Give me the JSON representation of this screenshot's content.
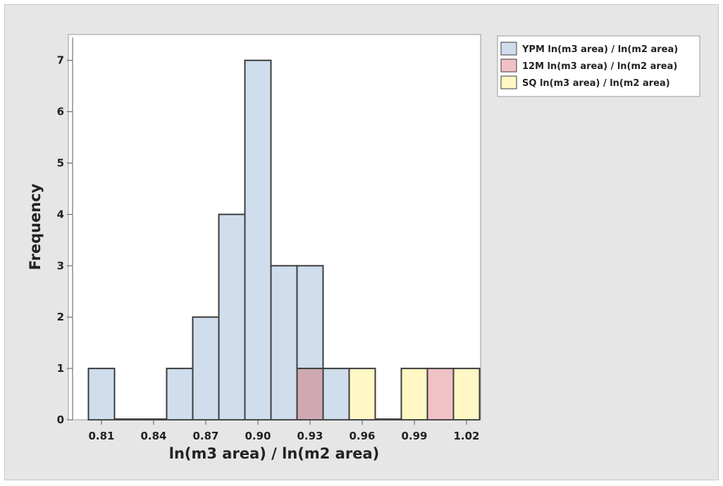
{
  "chart_data": {
    "type": "bar",
    "title": "",
    "xlabel": "ln(m3 area) / ln(m2 area)",
    "ylabel": "Frequency",
    "ylim": [
      0,
      7.5
    ],
    "xlim": [
      0.795,
      1.035
    ],
    "yticks": [
      0,
      1,
      2,
      3,
      4,
      5,
      6,
      7
    ],
    "xticks": [
      "0.81",
      "0.84",
      "0.87",
      "0.90",
      "0.93",
      "0.96",
      "0.99",
      "1.02"
    ],
    "bin_width": 0.015,
    "grid": false,
    "legend_position": "top-right, outside plot",
    "series": [
      {
        "name": "YPM ln(m3 area) / ln(m2 area)",
        "color": "#cfdded",
        "bins": [
          {
            "center": 0.81,
            "count": 1
          },
          {
            "center": 0.825,
            "count": 0
          },
          {
            "center": 0.84,
            "count": 0
          },
          {
            "center": 0.855,
            "count": 1
          },
          {
            "center": 0.87,
            "count": 2
          },
          {
            "center": 0.885,
            "count": 4
          },
          {
            "center": 0.9,
            "count": 7
          },
          {
            "center": 0.915,
            "count": 3
          },
          {
            "center": 0.93,
            "count": 3
          },
          {
            "center": 0.945,
            "count": 1
          },
          {
            "center": 0.975,
            "count": 0
          }
        ]
      },
      {
        "name": "12M ln(m3 area) / ln(m2 area)",
        "color": "#f0c2c6",
        "bins": [
          {
            "center": 0.93,
            "count": 1
          },
          {
            "center": 1.005,
            "count": 1
          }
        ]
      },
      {
        "name": "SQ ln(m3 area) / ln(m2 area)",
        "color": "#fff8c4",
        "bins": [
          {
            "center": 0.96,
            "count": 1
          },
          {
            "center": 0.99,
            "count": 1
          },
          {
            "center": 1.02,
            "count": 1
          }
        ]
      }
    ],
    "overlap_color": "#cfa9b2"
  }
}
